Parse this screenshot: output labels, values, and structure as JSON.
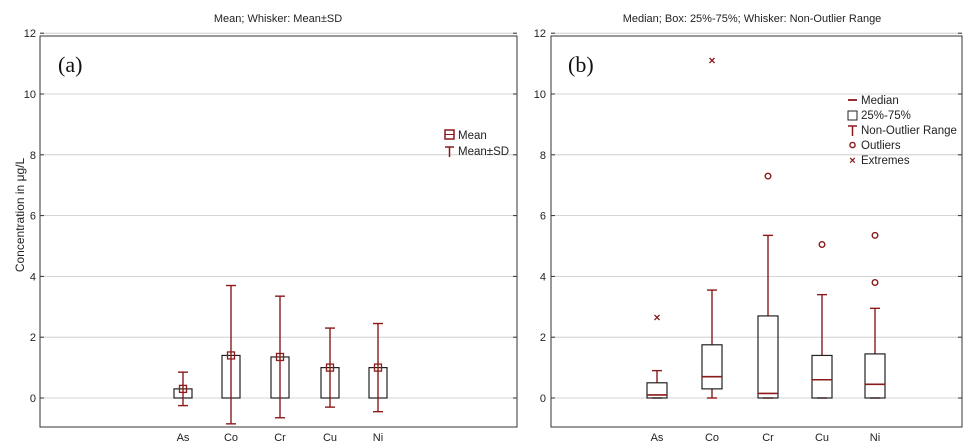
{
  "chart_data": [
    {
      "type": "bar",
      "panel_label": "(a)",
      "title": "Mean; Whisker: Mean±SD",
      "ylabel": "Concentration in μg/L",
      "ylim": [
        -1,
        12
      ],
      "yticks": [
        "0",
        "2",
        "4",
        "6",
        "8",
        "10",
        "12"
      ],
      "categories": [
        "As",
        "Co",
        "Cr",
        "Cu",
        "Ni"
      ],
      "mean": [
        0.3,
        1.4,
        1.35,
        1.0,
        1.0
      ],
      "sd_low": [
        -0.25,
        -0.85,
        -0.65,
        -0.3,
        -0.45
      ],
      "sd_high": [
        0.85,
        3.7,
        3.35,
        2.3,
        2.45
      ],
      "legend": [
        "Mean",
        "Mean±SD"
      ],
      "legend_position": "right",
      "colors": {
        "box": "#222222",
        "whisker": "#8b1a1a",
        "grid": "#c8c8c8"
      }
    },
    {
      "type": "box",
      "panel_label": "(b)",
      "title": "Median; Box: 25%-75%; Whisker: Non-Outlier Range",
      "ylim": [
        -1,
        12
      ],
      "yticks": [
        "0",
        "2",
        "4",
        "6",
        "8",
        "10",
        "12"
      ],
      "categories": [
        "As",
        "Co",
        "Cr",
        "Cu",
        "Ni"
      ],
      "median": [
        0.1,
        0.7,
        0.15,
        0.6,
        0.45
      ],
      "q1": [
        0.0,
        0.3,
        0.0,
        0.0,
        0.0
      ],
      "q3": [
        0.5,
        1.75,
        2.7,
        1.4,
        1.45
      ],
      "whisker_low": [
        0.0,
        0.0,
        0.0,
        0.0,
        0.0
      ],
      "whisker_high": [
        0.9,
        3.55,
        5.35,
        3.4,
        2.95
      ],
      "outliers": [
        [],
        [],
        [
          7.3
        ],
        [
          5.05
        ],
        [
          5.35,
          3.8
        ]
      ],
      "extremes": [
        [
          2.65
        ],
        [
          11.1
        ],
        [],
        [],
        []
      ],
      "legend": [
        "Median",
        "25%-75%",
        "Non-Outlier Range",
        "Outliers",
        "Extremes"
      ],
      "legend_position": "top-right",
      "colors": {
        "box": "#222222",
        "median": "#8b1a1a",
        "whisker": "#8b1a1a",
        "outlier": "#8b1a1a",
        "grid": "#c8c8c8"
      }
    }
  ]
}
